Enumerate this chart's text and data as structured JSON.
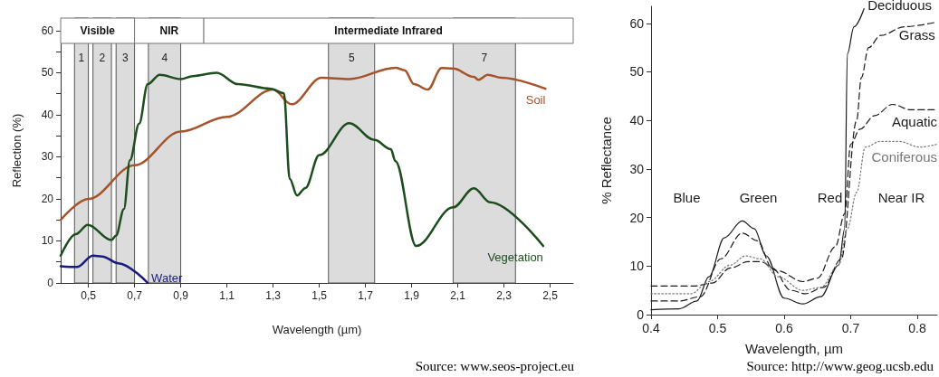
{
  "chart_data": [
    {
      "type": "line",
      "xlabel": "Wavelength (µm)",
      "ylabel": "Reflection (%)",
      "xlim": [
        0.38,
        2.6
      ],
      "xticks": [
        {
          "value": 0.5,
          "label": "0,5"
        },
        {
          "value": 0.7,
          "label": "0,7"
        },
        {
          "value": 0.9,
          "label": "0,9"
        },
        {
          "value": 1.1,
          "label": "1,1"
        },
        {
          "value": 1.3,
          "label": "1,3"
        },
        {
          "value": 1.5,
          "label": "1,5"
        },
        {
          "value": 1.7,
          "label": "1,7"
        },
        {
          "value": 1.9,
          "label": "1,9"
        },
        {
          "value": 2.1,
          "label": "2,1"
        },
        {
          "value": 2.3,
          "label": "2,3"
        },
        {
          "value": 2.5,
          "label": "2,5"
        }
      ],
      "ylim": [
        0,
        63
      ],
      "yticks": [
        0,
        {
          "value": 5,
          "label": null
        },
        10,
        {
          "value": 15,
          "label": null
        },
        20,
        {
          "value": 25,
          "label": null
        },
        30,
        {
          "value": 35,
          "label": null
        },
        40,
        {
          "value": 45,
          "label": null
        },
        50,
        {
          "value": 55,
          "label": null
        },
        60
      ],
      "grid": false,
      "legend": false,
      "marker": "none",
      "line_style": "solid",
      "bands": [
        {
          "axis": "x",
          "from": 0.38,
          "to": 0.7,
          "label": "Visible",
          "color": "#ffffff"
        },
        {
          "axis": "x",
          "from": 0.7,
          "to": 1.0,
          "label": "NIR",
          "color": "#ffffff"
        },
        {
          "axis": "x",
          "from": 1.0,
          "to": 2.6,
          "label": "Intermediate Infrared",
          "color": "#ffffff"
        },
        {
          "axis": "x",
          "from": 0.44,
          "to": 0.5,
          "label": "1",
          "color": "#dcdcdc"
        },
        {
          "axis": "x",
          "from": 0.52,
          "to": 0.6,
          "label": "2",
          "color": "#dcdcdc"
        },
        {
          "axis": "x",
          "from": 0.62,
          "to": 0.7,
          "label": "3",
          "color": "#dcdcdc"
        },
        {
          "axis": "x",
          "from": 0.76,
          "to": 0.9,
          "label": "4",
          "color": "#dcdcdc"
        },
        {
          "axis": "x",
          "from": 1.54,
          "to": 1.74,
          "label": "5",
          "color": "#dcdcdc"
        },
        {
          "axis": "x",
          "from": 2.08,
          "to": 2.35,
          "label": "7",
          "color": "#dcdcdc"
        }
      ],
      "series": [
        {
          "name": "Soil",
          "color": "#a5532a",
          "x": [
            0.38,
            0.5,
            0.7,
            0.9,
            1.1,
            1.3,
            1.38,
            1.51,
            1.63,
            1.83,
            1.87,
            1.91,
            1.97,
            2.03,
            2.08,
            2.17,
            2.19,
            2.23,
            2.29,
            2.48
          ],
          "values": [
            15,
            20,
            28,
            36,
            39.5,
            46,
            42.5,
            48.8,
            48.5,
            51.2,
            50.6,
            47.3,
            46,
            51.1,
            51,
            49,
            48.3,
            49.5,
            48.8,
            46.2
          ]
        },
        {
          "name": "Vegetation",
          "color": "#1d4d1d",
          "x": [
            0.38,
            0.445,
            0.497,
            0.6,
            0.62,
            0.654,
            0.68,
            0.72,
            0.757,
            0.809,
            0.9,
            0.952,
            1.056,
            1.147,
            1.29,
            1.347,
            1.372,
            1.404,
            1.44,
            1.5,
            1.63,
            1.74,
            1.81,
            1.83,
            1.92,
            2.08,
            2.17,
            2.24,
            2.47
          ],
          "values": [
            6.5,
            11.6,
            13.8,
            10.2,
            11.3,
            17.6,
            29.2,
            37.9,
            47.3,
            49.5,
            48.5,
            49.2,
            50,
            47.3,
            46.2,
            45.1,
            24.8,
            20.8,
            22.6,
            30.4,
            38,
            34,
            31.8,
            29,
            8.8,
            18,
            22.5,
            19.2,
            8.8
          ]
        },
        {
          "name": "Water",
          "color": "#1a1a80",
          "x": [
            0.38,
            0.45,
            0.52,
            0.56,
            0.63,
            0.757
          ],
          "values": [
            4,
            3.8,
            6.5,
            6.3,
            4.7,
            0
          ]
        }
      ],
      "annotations": [
        "Source: www.seos-project.eu"
      ]
    },
    {
      "type": "line",
      "xlabel": "Wavelength, µm",
      "ylabel": "% Reflectance",
      "xlim": [
        0.4,
        0.83
      ],
      "xticks": [
        0.4,
        0.5,
        0.6,
        0.7,
        0.8
      ],
      "ylim": [
        0,
        63.5
      ],
      "yticks": [
        0,
        10,
        20,
        30,
        40,
        50,
        60
      ],
      "grid": false,
      "legend": false,
      "marker": "none",
      "series": [
        {
          "name": "Deciduous",
          "color": "#1a1a1a",
          "line_style": "solid",
          "x": [
            0.4,
            0.442,
            0.469,
            0.487,
            0.51,
            0.537,
            0.555,
            0.573,
            0.6,
            0.628,
            0.655,
            0.682,
            0.691,
            0.695,
            0.705,
            0.72
          ],
          "values": [
            1,
            1.2,
            2.8,
            7.8,
            15.8,
            19.3,
            17.7,
            12.1,
            3.4,
            2.2,
            3.7,
            10.2,
            17.7,
            53.7,
            59.3,
            63
          ]
        },
        {
          "name": "Grass",
          "color": "#1a1a1a",
          "line_style": "dashed",
          "x": [
            0.4,
            0.442,
            0.474,
            0.505,
            0.537,
            0.56,
            0.582,
            0.61,
            0.632,
            0.659,
            0.686,
            0.709,
            0.716,
            0.727,
            0.745,
            0.781,
            0.827
          ],
          "values": [
            2.8,
            2.8,
            3.7,
            11.5,
            16.8,
            15.2,
            9.6,
            5,
            4.3,
            5.6,
            11.5,
            40,
            48.8,
            55,
            57.5,
            59.3,
            60.2
          ]
        },
        {
          "name": "Aquatic",
          "color": "#1a1a1a",
          "line_style": "dashed",
          "x": [
            0.4,
            0.465,
            0.492,
            0.519,
            0.546,
            0.564,
            0.591,
            0.628,
            0.65,
            0.677,
            0.691,
            0.7,
            0.714,
            0.736,
            0.763,
            0.79,
            0.83
          ],
          "values": [
            5.9,
            5.9,
            6.5,
            9.6,
            10.9,
            10.9,
            9,
            6.8,
            7.5,
            14,
            20.8,
            35.1,
            38.2,
            41,
            43.3,
            42.2,
            42.2
          ]
        },
        {
          "name": "Coniferous",
          "color": "#777777",
          "line_style": "dotted",
          "x": [
            0.4,
            0.46,
            0.487,
            0.519,
            0.542,
            0.564,
            0.591,
            0.628,
            0.655,
            0.682,
            0.695,
            0.709,
            0.722,
            0.745,
            0.772,
            0.804,
            0.83
          ],
          "values": [
            4.3,
            4.3,
            6.8,
            10.2,
            12.1,
            11.5,
            7.8,
            5,
            5.6,
            10.2,
            17.7,
            25.2,
            34.5,
            35.7,
            35.7,
            34.5,
            35.1
          ]
        }
      ],
      "annotations": [
        "Blue",
        "Green",
        "Red",
        "Near IR",
        "Source: http://www.geog.ucsb.edu"
      ]
    }
  ]
}
